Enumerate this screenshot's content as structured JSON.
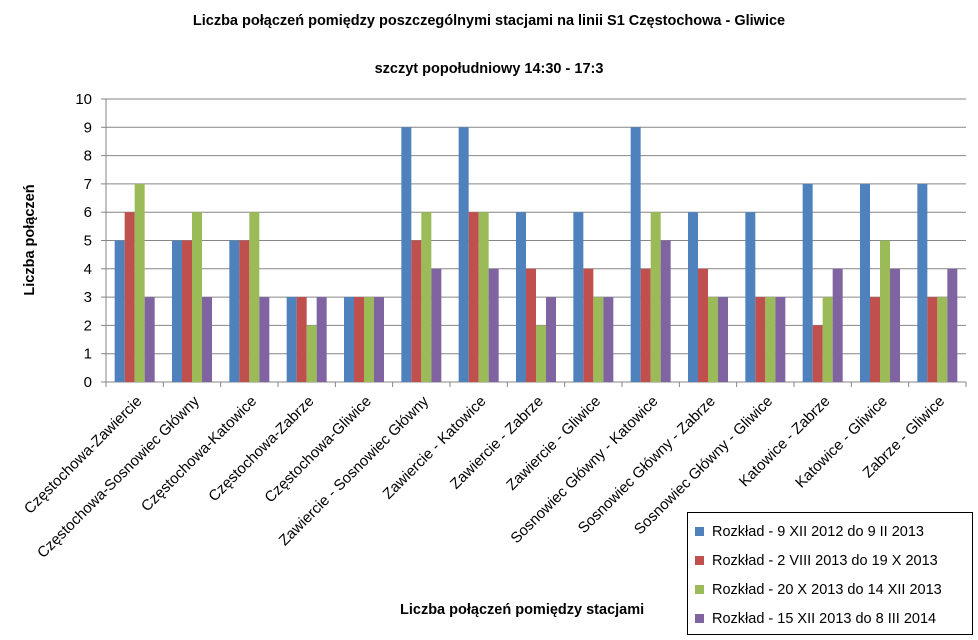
{
  "chart_data": {
    "type": "bar",
    "title": "Liczba połączeń pomiędzy poszczególnymi stacjami na linii S1 Częstochowa - Gliwice",
    "subtitle": "szczyt popołudniowy 14:30 - 17:3",
    "xlabel": "Liczba połączeń pomiędzy stacjami",
    "ylabel": "Liczba połączeń",
    "ylim": [
      0,
      10
    ],
    "yticks": [
      0,
      1,
      2,
      3,
      4,
      5,
      6,
      7,
      8,
      9,
      10
    ],
    "grid": true,
    "legend_position": "bottom-right",
    "categories": [
      "Częstochowa-Zawiercie",
      "Częstochowa-Sosnowiec Główny",
      "Częstochowa-Katowice",
      "Częstochowa-Zabrze",
      "Częstochowa-Gliwice",
      "Zawiercie - Sosnowiec Główny",
      "Zawiercie - Katowice",
      "Zawiercie - Zabrze",
      "Zawiercie - Gliwice",
      "Sosnowiec Główny - Katowice",
      "Sosnowiec Główny - Zabrze",
      "Sosnowiec Główny - Gliwice",
      "Katowice - Zabrze",
      "Katowice - Gliwice",
      "Zabrze - Gliwice"
    ],
    "series": [
      {
        "name": "Rozkład - 9 XII 2012 do 9 II 2013",
        "color": "#4F81BD",
        "values": [
          5,
          5,
          5,
          3,
          3,
          9,
          9,
          6,
          6,
          9,
          6,
          6,
          7,
          7,
          7
        ]
      },
      {
        "name": "Rozkład - 2 VIII 2013 do 19 X 2013",
        "color": "#C0504D",
        "values": [
          6,
          5,
          5,
          3,
          3,
          5,
          6,
          4,
          4,
          4,
          4,
          3,
          2,
          3,
          3
        ]
      },
      {
        "name": "Rozkład - 20 X 2013 do 14 XII 2013",
        "color": "#9BBB59",
        "values": [
          7,
          6,
          6,
          2,
          3,
          6,
          6,
          2,
          3,
          6,
          3,
          3,
          3,
          5,
          3
        ]
      },
      {
        "name": "Rozkład - 15 XII 2013 do 8 III 2014",
        "color": "#8064A2",
        "values": [
          3,
          3,
          3,
          3,
          3,
          4,
          4,
          3,
          3,
          5,
          3,
          3,
          4,
          4,
          4
        ]
      }
    ]
  }
}
